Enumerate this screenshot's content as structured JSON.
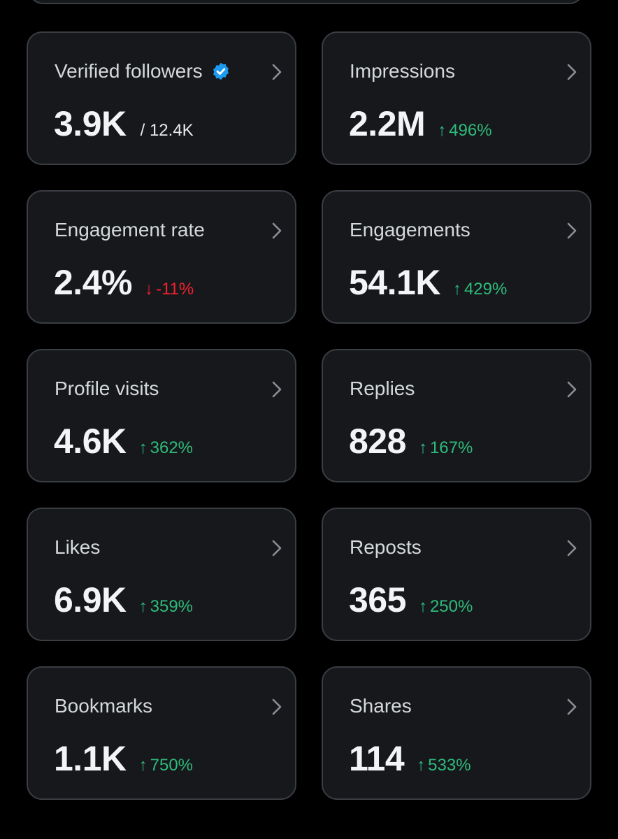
{
  "colors": {
    "background": "#000000",
    "card": "#16181c",
    "card_border": "#3a3d42",
    "positive": "#2fbb7b",
    "negative": "#f4212e",
    "verified": "#1d9bf0"
  },
  "metrics": [
    {
      "title": "Verified followers",
      "value": "3.9K",
      "sub": "/ 12.4K",
      "delta": "",
      "direction": "",
      "verified": true
    },
    {
      "title": "Impressions",
      "value": "2.2M",
      "sub": "",
      "delta": "496%",
      "direction": "up"
    },
    {
      "title": "Engagement rate",
      "value": "2.4%",
      "sub": "",
      "delta": "-11%",
      "direction": "down"
    },
    {
      "title": "Engagements",
      "value": "54.1K",
      "sub": "",
      "delta": "429%",
      "direction": "up"
    },
    {
      "title": "Profile visits",
      "value": "4.6K",
      "sub": "",
      "delta": "362%",
      "direction": "up"
    },
    {
      "title": "Replies",
      "value": "828",
      "sub": "",
      "delta": "167%",
      "direction": "up"
    },
    {
      "title": "Likes",
      "value": "6.9K",
      "sub": "",
      "delta": "359%",
      "direction": "up"
    },
    {
      "title": "Reposts",
      "value": "365",
      "sub": "",
      "delta": "250%",
      "direction": "up"
    },
    {
      "title": "Bookmarks",
      "value": "1.1K",
      "sub": "",
      "delta": "750%",
      "direction": "up"
    },
    {
      "title": "Shares",
      "value": "114",
      "sub": "",
      "delta": "533%",
      "direction": "up"
    }
  ],
  "icons": {
    "up": "↑",
    "down": "↓",
    "verified": "verified-badge-icon",
    "chevron": "chevron-right-icon"
  }
}
